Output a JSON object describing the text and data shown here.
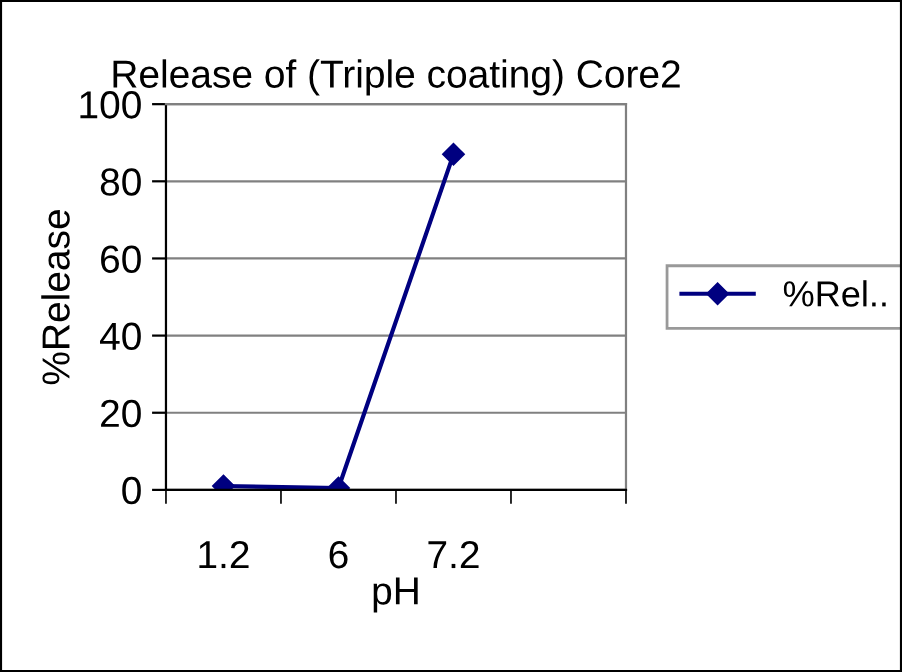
{
  "chart_data": {
    "type": "line",
    "title": "Release of (Triple coating) Core2",
    "xlabel": "pH",
    "ylabel": "%Release",
    "categories": [
      "1.2",
      "6",
      "7.2",
      null
    ],
    "series": [
      {
        "name": "%Rel..",
        "color": "#000080",
        "values": [
          1,
          0.5,
          87,
          null
        ]
      }
    ],
    "ylim": [
      0,
      100
    ],
    "yticks": [
      0,
      20,
      40,
      60,
      80,
      100
    ],
    "grid": "y",
    "legend": "right",
    "marker": "diamond",
    "line_style": "solid"
  }
}
